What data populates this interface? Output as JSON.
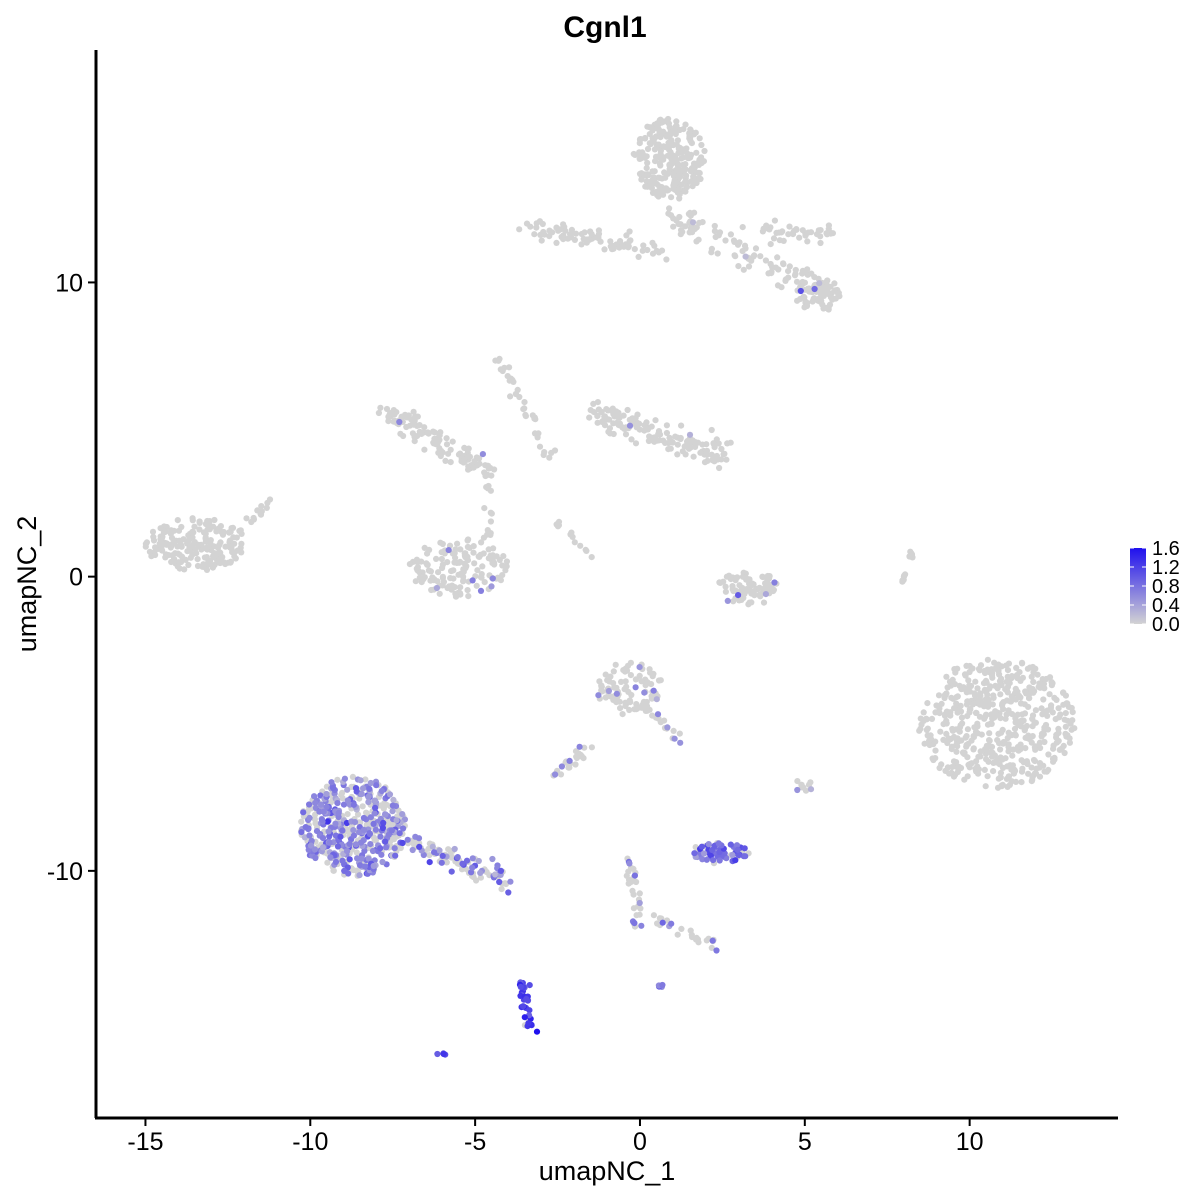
{
  "chart_data": {
    "type": "scatter",
    "title": "Cgnl1",
    "xlabel": "umapNC_1",
    "ylabel": "umapNC_2",
    "xlim": [
      -16.5,
      14.5
    ],
    "ylim": [
      -18.4,
      17.9
    ],
    "x_ticks": [
      -15,
      -10,
      -5,
      0,
      5,
      10
    ],
    "x_tick_labels": [
      "-15",
      "-10",
      "-5",
      "0",
      "5",
      "10"
    ],
    "y_ticks": [
      -10,
      0,
      10
    ],
    "y_tick_labels": [
      "-10",
      "0",
      "10"
    ],
    "grid": false,
    "legend": {
      "position": "right",
      "type": "colorbar",
      "min": 0.0,
      "max": 1.6,
      "ticks": [
        1.6,
        1.2,
        0.8,
        0.4,
        0.0
      ],
      "tick_labels": [
        "1.6",
        "1.2",
        "0.8",
        "0.4",
        "0.0"
      ],
      "low_color": "#d3d3d3",
      "high_color": "#1f10ee"
    },
    "clusters": [
      {
        "label": "top-right cluster",
        "shape": "ellipse",
        "cx": 0.9,
        "cy": 14.2,
        "rx": 1.1,
        "ry": 1.4,
        "n": 260,
        "expr": 0,
        "expr_frac": 0
      },
      {
        "label": "top-right arm",
        "shape": "segment",
        "x1": 0.8,
        "y1": 12.3,
        "x2": 5.8,
        "y2": 9.6,
        "w": 0.5,
        "n": 110,
        "expr": 0,
        "expr_frac": 0.02
      },
      {
        "label": "top-right lower blob",
        "shape": "ellipse",
        "cx": 5.4,
        "cy": 9.6,
        "rx": 0.7,
        "ry": 0.6,
        "n": 60,
        "expr": 0.9,
        "expr_frac": 0.03
      },
      {
        "label": "top-left arm",
        "shape": "segment",
        "x1": -3.4,
        "y1": 11.9,
        "x2": 0.6,
        "y2": 11.0,
        "w": 0.35,
        "n": 80,
        "expr": 0,
        "expr_frac": 0
      },
      {
        "label": "right arm",
        "shape": "segment",
        "x1": 3.8,
        "y1": 11.8,
        "x2": 5.7,
        "y2": 11.6,
        "w": 0.35,
        "n": 40,
        "expr": 0,
        "expr_frac": 0
      },
      {
        "label": "far-left cluster",
        "shape": "ellipse",
        "cx": -13.5,
        "cy": 1.1,
        "rx": 1.5,
        "ry": 0.9,
        "n": 190,
        "expr": 0,
        "expr_frac": 0
      },
      {
        "label": "far-left tail",
        "shape": "segment",
        "x1": -12.2,
        "y1": 1.3,
        "x2": -11.2,
        "y2": 2.7,
        "w": 0.2,
        "n": 15,
        "expr": 0,
        "expr_frac": 0
      },
      {
        "label": "upper-middle left",
        "shape": "segment",
        "x1": -7.6,
        "y1": 5.6,
        "x2": -4.8,
        "y2": 3.7,
        "w": 0.45,
        "n": 110,
        "expr": 0.5,
        "expr_frac": 0.02
      },
      {
        "label": "upper-middle tail",
        "shape": "segment",
        "x1": -4.3,
        "y1": 7.4,
        "x2": -2.7,
        "y2": 4.0,
        "w": 0.25,
        "n": 35,
        "expr": 0,
        "expr_frac": 0
      },
      {
        "label": "upper-middle right",
        "shape": "segment",
        "x1": -1.3,
        "y1": 5.6,
        "x2": 2.5,
        "y2": 4.0,
        "w": 0.5,
        "n": 150,
        "expr": 0.5,
        "expr_frac": 0.02
      },
      {
        "label": "middle arc",
        "shape": "ellipse",
        "cx": -5.5,
        "cy": 0.3,
        "rx": 1.5,
        "ry": 1.0,
        "n": 150,
        "expr": 0.6,
        "expr_frac": 0.04
      },
      {
        "label": "middle stem",
        "shape": "segment",
        "x1": -4.6,
        "y1": 1.2,
        "x2": -4.6,
        "y2": 3.8,
        "w": 0.2,
        "n": 20,
        "expr": 0.6,
        "expr_frac": 0.05
      },
      {
        "label": "small middle blob",
        "shape": "ellipse",
        "cx": 3.3,
        "cy": -0.4,
        "rx": 1.0,
        "ry": 0.55,
        "n": 80,
        "expr": 0.6,
        "expr_frac": 0.05
      },
      {
        "label": "diagonal streak",
        "shape": "segment",
        "x1": -2.5,
        "y1": 1.8,
        "x2": -1.3,
        "y2": 0.6,
        "w": 0.12,
        "n": 12,
        "expr": 0,
        "expr_frac": 0
      },
      {
        "label": "thin streak right",
        "shape": "segment",
        "x1": 7.9,
        "y1": -0.3,
        "x2": 8.3,
        "y2": 0.9,
        "w": 0.08,
        "n": 14,
        "expr": 0,
        "expr_frac": 0
      },
      {
        "label": "large right cluster",
        "shape": "ellipse",
        "cx": 10.8,
        "cy": -5.0,
        "rx": 2.4,
        "ry": 2.2,
        "n": 520,
        "expr": 0,
        "expr_frac": 0
      },
      {
        "label": "lower-middle cluster",
        "shape": "ellipse",
        "cx": -0.3,
        "cy": -3.8,
        "rx": 1.0,
        "ry": 0.9,
        "n": 90,
        "expr": 0.6,
        "expr_frac": 0.12
      },
      {
        "label": "lower-middle tail",
        "shape": "segment",
        "x1": 0.2,
        "y1": -4.4,
        "x2": 1.2,
        "y2": -5.6,
        "w": 0.2,
        "n": 15,
        "expr": 0.6,
        "expr_frac": 0.2
      },
      {
        "label": "lower-left cluster",
        "shape": "ellipse",
        "cx": -8.7,
        "cy": -8.5,
        "rx": 1.6,
        "ry": 1.7,
        "n": 500,
        "expr": 0.65,
        "expr_frac": 0.55
      },
      {
        "label": "lower-left tail",
        "shape": "segment",
        "x1": -7.4,
        "y1": -8.8,
        "x2": -3.9,
        "y2": -10.4,
        "w": 0.4,
        "n": 100,
        "expr": 0.65,
        "expr_frac": 0.45
      },
      {
        "label": "small left-middle blob",
        "shape": "segment",
        "x1": -2.8,
        "y1": -6.9,
        "x2": -1.5,
        "y2": -5.8,
        "w": 0.25,
        "n": 25,
        "expr": 0.65,
        "expr_frac": 0.2
      },
      {
        "label": "middle-right blob",
        "shape": "ellipse",
        "cx": 2.4,
        "cy": -9.4,
        "rx": 0.9,
        "ry": 0.35,
        "n": 70,
        "expr": 0.85,
        "expr_frac": 0.75
      },
      {
        "label": "bottom-middle streak",
        "shape": "segment",
        "x1": -0.3,
        "y1": -9.6,
        "x2": 0.0,
        "y2": -12.0,
        "w": 0.2,
        "n": 30,
        "expr": 0.7,
        "expr_frac": 0.25
      },
      {
        "label": "bottom streak right",
        "shape": "segment",
        "x1": 0.5,
        "y1": -11.6,
        "x2": 2.5,
        "y2": -12.7,
        "w": 0.25,
        "n": 25,
        "expr": 0.8,
        "expr_frac": 0.3
      },
      {
        "label": "bottom-left cluster",
        "shape": "segment",
        "x1": -3.6,
        "y1": -13.7,
        "x2": -3.3,
        "y2": -15.5,
        "w": 0.2,
        "n": 40,
        "expr": 1.2,
        "expr_frac": 0.85
      },
      {
        "label": "bottom singlet",
        "shape": "ellipse",
        "cx": -6.0,
        "cy": -16.2,
        "rx": 0.15,
        "ry": 0.1,
        "n": 4,
        "expr": 1.1,
        "expr_frac": 1.0
      },
      {
        "label": "small right blob",
        "shape": "ellipse",
        "cx": 5.0,
        "cy": -7.1,
        "rx": 0.3,
        "ry": 0.25,
        "n": 10,
        "expr": 0.3,
        "expr_frac": 0.1
      },
      {
        "label": "small point",
        "shape": "ellipse",
        "cx": 0.6,
        "cy": -13.9,
        "rx": 0.1,
        "ry": 0.1,
        "n": 4,
        "expr": 0.9,
        "expr_frac": 1.0
      }
    ]
  }
}
